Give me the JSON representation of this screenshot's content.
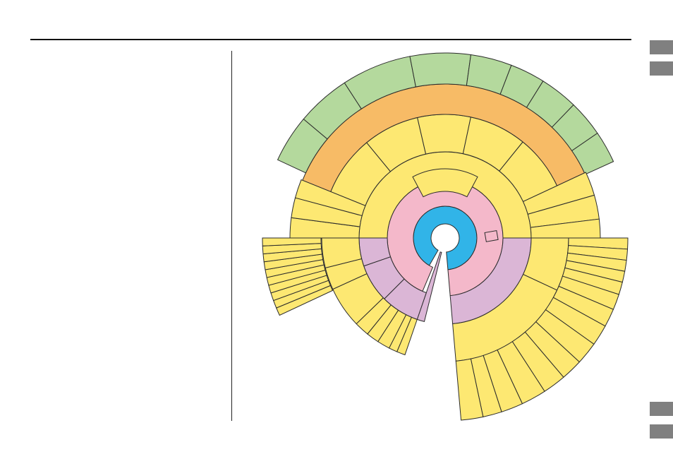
{
  "colors": {
    "center_ring": "#31B4E8",
    "second_ring": "#F4B8CA",
    "purple": "#DBB6D6",
    "yellow": "#FDE872",
    "orange": "#F7BB66",
    "green": "#B4D99D",
    "stroke": "#2b2b2b",
    "buttons": "#808080"
  },
  "side_buttons": [
    {
      "icon": "gray-square"
    },
    {
      "icon": "gray-square"
    },
    {
      "icon": "gray-square"
    },
    {
      "icon": "gray-square"
    }
  ]
}
